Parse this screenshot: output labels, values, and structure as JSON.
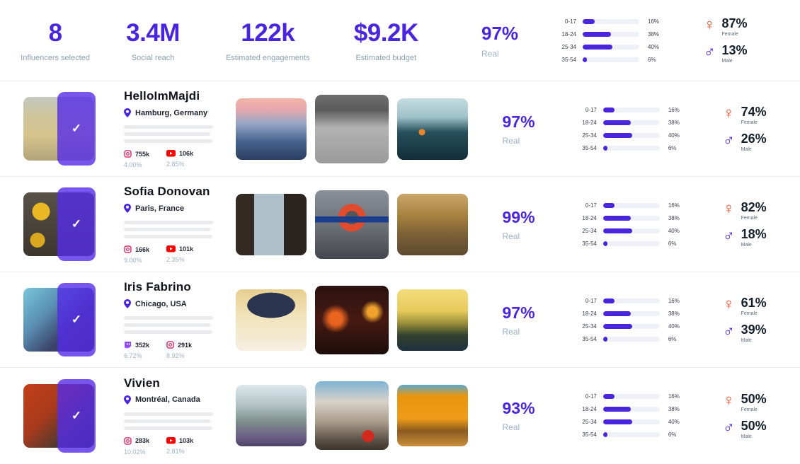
{
  "colors": {
    "accent": "#4a25e0",
    "female": "#f4421c",
    "male": "#3a16e4",
    "instagram": "#e1306c",
    "youtube": "#ff0000",
    "twitch": "#9146ff"
  },
  "summary": {
    "stats": [
      {
        "value": "8",
        "label": "Influencers selected"
      },
      {
        "value": "3.4M",
        "label": "Social reach"
      },
      {
        "value": "122k",
        "label": "Estimated engagements"
      },
      {
        "value": "$9.2K",
        "label": "Estimated budget"
      }
    ],
    "real": {
      "value": "97%",
      "label": "Real"
    },
    "gender": {
      "female_value": "87%",
      "female_label": "Female",
      "male_value": "13%",
      "male_label": "Male"
    }
  },
  "age_chart": {
    "type": "bar",
    "categories": [
      "0-17",
      "18-24",
      "25-34",
      "35-54"
    ],
    "values": [
      16,
      38,
      40,
      6
    ],
    "display": [
      "16%",
      "38%",
      "40%",
      "6%"
    ]
  },
  "influencers": [
    {
      "name": "HelloImMajdi",
      "location": "Hamburg, Germany",
      "real": {
        "value": "97%",
        "label": "Real"
      },
      "networks": [
        {
          "platform": "instagram",
          "followers": "755k",
          "engagement": "4.00%"
        },
        {
          "platform": "youtube",
          "followers": "106k",
          "engagement": "2.85%"
        }
      ],
      "gender": {
        "female_value": "74%",
        "female_label": "Female",
        "male_value": "26%",
        "male_label": "Male"
      }
    },
    {
      "name": "Sofia Donovan",
      "location": "Paris, France",
      "real": {
        "value": "99%",
        "label": "Real"
      },
      "networks": [
        {
          "platform": "instagram",
          "followers": "166k",
          "engagement": "9.00%"
        },
        {
          "platform": "youtube",
          "followers": "101k",
          "engagement": "2.35%"
        }
      ],
      "gender": {
        "female_value": "82%",
        "female_label": "Female",
        "male_value": "18%",
        "male_label": "Male"
      }
    },
    {
      "name": "Iris Fabrino",
      "location": "Chicago, USA",
      "real": {
        "value": "97%",
        "label": "Real"
      },
      "networks": [
        {
          "platform": "twitch",
          "followers": "352k",
          "engagement": "6.72%"
        },
        {
          "platform": "instagram",
          "followers": "291k",
          "engagement": "8.92%"
        }
      ],
      "gender": {
        "female_value": "61%",
        "female_label": "Female",
        "male_value": "39%",
        "male_label": "Male"
      }
    },
    {
      "name": "Vivien",
      "location": "Montréal, Canada",
      "real": {
        "value": "93%",
        "label": "Real"
      },
      "networks": [
        {
          "platform": "instagram",
          "followers": "283k",
          "engagement": "10.02%"
        },
        {
          "platform": "youtube",
          "followers": "103k",
          "engagement": "2.81%"
        }
      ],
      "gender": {
        "female_value": "50%",
        "female_label": "Female",
        "male_value": "50%",
        "male_label": "Male"
      }
    }
  ]
}
